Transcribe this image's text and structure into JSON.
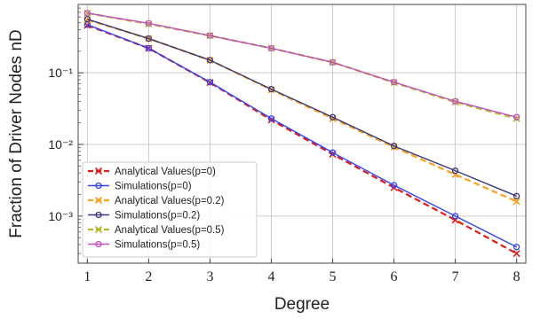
{
  "chart_data": {
    "type": "line",
    "xlabel": "Degree",
    "ylabel": "Fraction of Driver Nodes nD",
    "y_scale": "log",
    "x": [
      1,
      2,
      3,
      4,
      5,
      6,
      7,
      8
    ],
    "xlim": [
      0.85,
      8.15
    ],
    "ylim": [
      0.00022,
      0.9
    ],
    "x_ticks": [
      "1",
      "2",
      "3",
      "4",
      "5",
      "6",
      "7",
      "8"
    ],
    "y_ticks": [
      {
        "value": 0.1,
        "label": "10⁻¹"
      },
      {
        "value": 0.01,
        "label": "10⁻²"
      },
      {
        "value": 0.001,
        "label": "10⁻³"
      }
    ],
    "grid": true,
    "legend_position": "lower-left",
    "series": [
      {
        "name": "Analytical Values(p=0)",
        "color": "#e31a1c",
        "style": "dashed",
        "marker": "x",
        "values": [
          0.46,
          0.22,
          0.073,
          0.022,
          0.0073,
          0.0025,
          0.00088,
          0.0003
        ]
      },
      {
        "name": "Simulations(p=0)",
        "color": "#3344ee",
        "style": "solid",
        "marker": "circle",
        "values": [
          0.47,
          0.22,
          0.074,
          0.023,
          0.0077,
          0.0027,
          0.001,
          0.00037
        ]
      },
      {
        "name": "Analytical Values(p=0.2)",
        "color": "#ff9f1c",
        "style": "dashed",
        "marker": "x",
        "values": [
          0.55,
          0.3,
          0.15,
          0.058,
          0.023,
          0.0092,
          0.0038,
          0.0016
        ]
      },
      {
        "name": "Simulations(p=0.2)",
        "color": "#383878",
        "style": "solid",
        "marker": "circle",
        "values": [
          0.56,
          0.3,
          0.15,
          0.059,
          0.024,
          0.0095,
          0.0043,
          0.0019
        ]
      },
      {
        "name": "Analytical Values(p=0.5)",
        "color": "#b5b82a",
        "style": "dashed",
        "marker": "x",
        "values": [
          0.68,
          0.48,
          0.33,
          0.22,
          0.14,
          0.073,
          0.039,
          0.023
        ]
      },
      {
        "name": "Simulations(p=0.5)",
        "color": "#c050c0",
        "style": "solid",
        "marker": "circle",
        "values": [
          0.68,
          0.49,
          0.33,
          0.22,
          0.14,
          0.074,
          0.04,
          0.024
        ]
      }
    ]
  }
}
